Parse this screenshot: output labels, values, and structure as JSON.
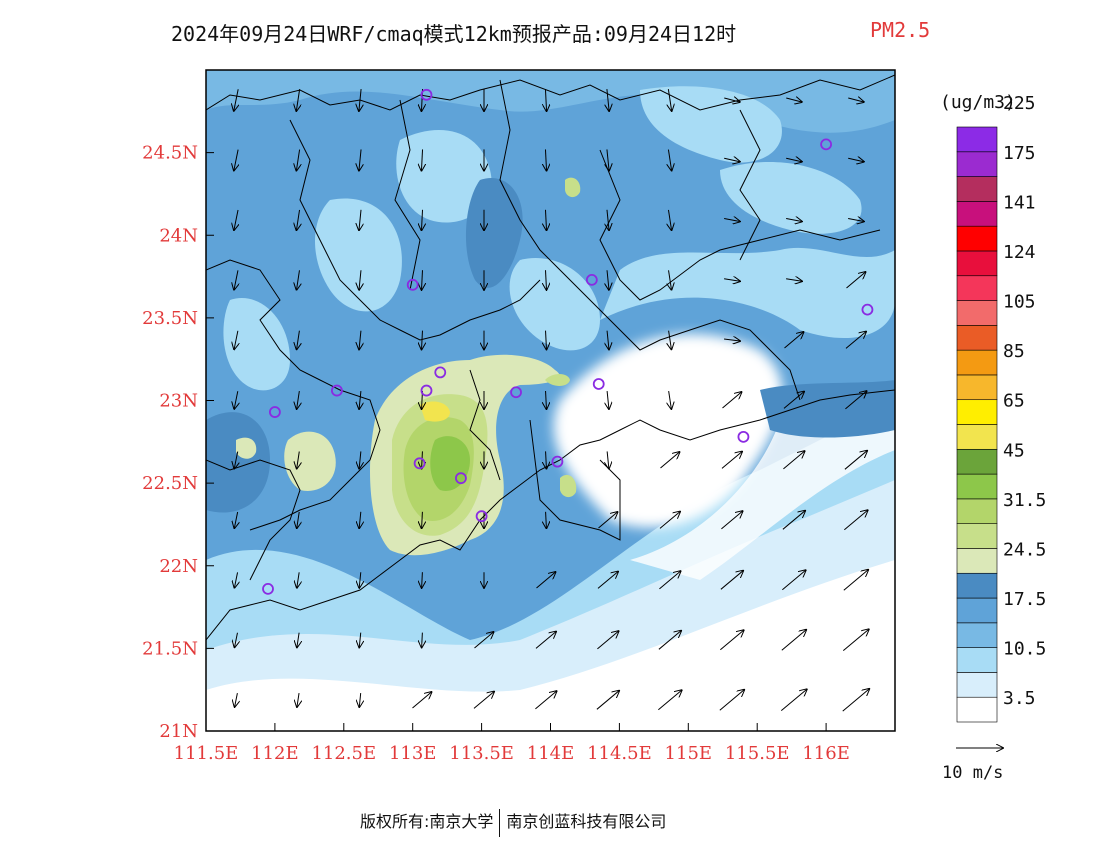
{
  "title": {
    "main": "2024年09月24日WRF/cmaq模式12km预报产品:09月24日12时",
    "variable": "PM2.5",
    "variable_color": "#e23a3a"
  },
  "map": {
    "lon_range": [
      111.5,
      116.5
    ],
    "lat_range": [
      21.0,
      25.0
    ],
    "lon_ticks": [
      "111.5E",
      "112E",
      "112.5E",
      "113E",
      "113.5E",
      "114E",
      "114.5E",
      "115E",
      "115.5E",
      "116E"
    ],
    "lat_ticks": [
      "21N",
      "21.5N",
      "22N",
      "22.5N",
      "23N",
      "23.5N",
      "24N",
      "24.5N"
    ],
    "tick_label_color": "#e23a3a",
    "stations": [
      {
        "lon": 113.1,
        "lat": 24.85
      },
      {
        "lon": 116.0,
        "lat": 24.55
      },
      {
        "lon": 113.0,
        "lat": 23.7
      },
      {
        "lon": 114.3,
        "lat": 23.73
      },
      {
        "lon": 116.3,
        "lat": 23.55
      },
      {
        "lon": 113.2,
        "lat": 23.17
      },
      {
        "lon": 113.1,
        "lat": 23.06
      },
      {
        "lon": 112.45,
        "lat": 23.06
      },
      {
        "lon": 113.75,
        "lat": 23.05
      },
      {
        "lon": 114.35,
        "lat": 23.1
      },
      {
        "lon": 112.0,
        "lat": 22.93
      },
      {
        "lon": 115.4,
        "lat": 22.78
      },
      {
        "lon": 113.05,
        "lat": 22.62
      },
      {
        "lon": 113.35,
        "lat": 22.53
      },
      {
        "lon": 114.05,
        "lat": 22.63
      },
      {
        "lon": 113.5,
        "lat": 22.3
      },
      {
        "lon": 111.95,
        "lat": 21.86
      }
    ],
    "station_color": "#8a2be2"
  },
  "legend": {
    "unit": "(ug/m3)",
    "colors": [
      "#ffffff",
      "#d8eefb",
      "#a8dcf5",
      "#78b9e4",
      "#5fa3d8",
      "#4a8bc2",
      "#dbe8b8",
      "#c7df8a",
      "#b3d56a",
      "#8dc74a",
      "#6ba43a",
      "#f2e44e",
      "#ffee00",
      "#f7b72c",
      "#f49a12",
      "#ea5c26",
      "#f26b6b",
      "#f4365a",
      "#e80f3c",
      "#ff0000",
      "#c8107c",
      "#b42e5e",
      "#9b2bd0",
      "#8c2be6"
    ],
    "labels": [
      "3.5",
      "10.5",
      "17.5",
      "24.5",
      "31.5",
      "45",
      "65",
      "85",
      "105",
      "124",
      "141",
      "175",
      "225"
    ],
    "wind_ref": "10 m/s"
  },
  "footer": {
    "copyright": "版权所有:南京大学",
    "company": "南京创蓝科技有限公司"
  }
}
